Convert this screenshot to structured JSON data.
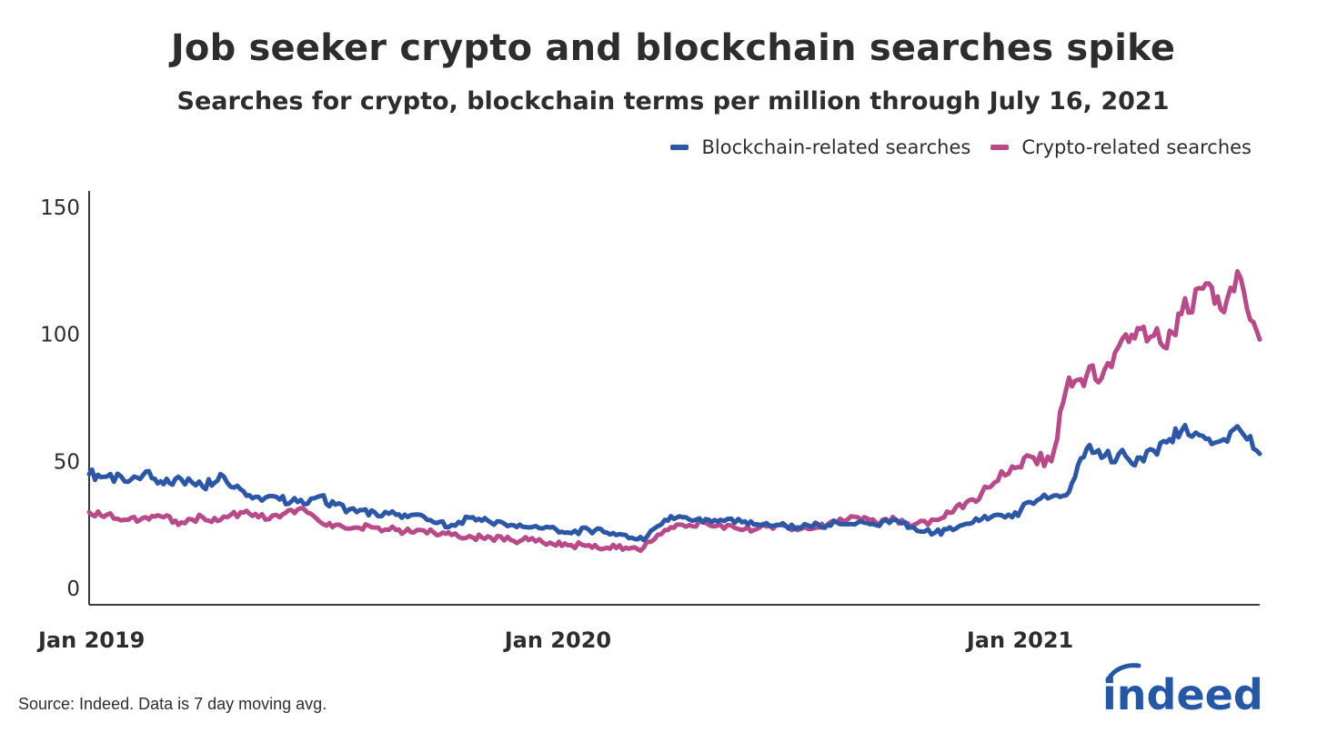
{
  "chart_data": {
    "type": "line",
    "title": "Job seeker crypto and blockchain searches spike",
    "subtitle": "Searches for crypto, blockchain terms per million through July 16, 2021",
    "xlabel": "",
    "ylabel": "",
    "ylim": [
      0,
      150
    ],
    "y_ticks": [
      "0",
      "50",
      "100",
      "150"
    ],
    "x_ticks": [
      "Jan 2019",
      "Jan 2020",
      "Jan 2021"
    ],
    "xlim": [
      "2019-01-01",
      "2021-07-16"
    ],
    "grid": false,
    "legend_position": "top-right",
    "colors": {
      "blockchain": "#2b57a6",
      "crypto": "#b84a8a"
    },
    "series": [
      {
        "name": "Blockchain-related searches",
        "color": "#2b57a6",
        "x": [
          "2019-01-01",
          "2019-01-15",
          "2019-02-01",
          "2019-02-15",
          "2019-03-01",
          "2019-03-15",
          "2019-04-01",
          "2019-04-15",
          "2019-05-01",
          "2019-05-15",
          "2019-06-01",
          "2019-06-15",
          "2019-07-01",
          "2019-07-15",
          "2019-08-01",
          "2019-08-15",
          "2019-09-01",
          "2019-09-15",
          "2019-10-01",
          "2019-10-15",
          "2019-11-01",
          "2019-11-15",
          "2019-12-01",
          "2019-12-15",
          "2020-01-01",
          "2020-01-15",
          "2020-02-01",
          "2020-02-15",
          "2020-03-01",
          "2020-03-15",
          "2020-04-01",
          "2020-04-15",
          "2020-05-01",
          "2020-05-15",
          "2020-06-01",
          "2020-06-15",
          "2020-07-01",
          "2020-07-15",
          "2020-08-01",
          "2020-08-15",
          "2020-09-01",
          "2020-09-15",
          "2020-10-01",
          "2020-10-15",
          "2020-11-01",
          "2020-11-15",
          "2020-12-01",
          "2020-12-15",
          "2021-01-01",
          "2021-01-15",
          "2021-02-01",
          "2021-02-15",
          "2021-03-01",
          "2021-03-15",
          "2021-04-01",
          "2021-04-15",
          "2021-05-01",
          "2021-05-15",
          "2021-06-01",
          "2021-06-15",
          "2021-07-01",
          "2021-07-16"
        ],
        "values": [
          45,
          44,
          42,
          46,
          41,
          43,
          40,
          45,
          39,
          36,
          35,
          34,
          36,
          33,
          30,
          30,
          29,
          29,
          26,
          25,
          28,
          26,
          25,
          24,
          24,
          22,
          23,
          22,
          21,
          19,
          27,
          28,
          26,
          27,
          26,
          25,
          25,
          24,
          25,
          26,
          26,
          25,
          27,
          24,
          22,
          23,
          26,
          28,
          28,
          34,
          36,
          38,
          55,
          52,
          52,
          50,
          58,
          62,
          60,
          58,
          62,
          53
        ],
        "ylim": [
          0,
          150
        ]
      },
      {
        "name": "Crypto-related searches",
        "color": "#b84a8a",
        "x": [
          "2019-01-01",
          "2019-01-15",
          "2019-02-01",
          "2019-02-15",
          "2019-03-01",
          "2019-03-15",
          "2019-04-01",
          "2019-04-15",
          "2019-05-01",
          "2019-05-15",
          "2019-06-01",
          "2019-06-15",
          "2019-07-01",
          "2019-07-15",
          "2019-08-01",
          "2019-08-15",
          "2019-09-01",
          "2019-09-15",
          "2019-10-01",
          "2019-10-15",
          "2019-11-01",
          "2019-11-15",
          "2019-12-01",
          "2019-12-15",
          "2020-01-01",
          "2020-01-15",
          "2020-02-01",
          "2020-02-15",
          "2020-03-01",
          "2020-03-15",
          "2020-04-01",
          "2020-04-15",
          "2020-05-01",
          "2020-05-15",
          "2020-06-01",
          "2020-06-15",
          "2020-07-01",
          "2020-07-15",
          "2020-08-01",
          "2020-08-15",
          "2020-09-01",
          "2020-09-15",
          "2020-10-01",
          "2020-10-15",
          "2020-11-01",
          "2020-11-15",
          "2020-12-01",
          "2020-12-15",
          "2021-01-01",
          "2021-01-15",
          "2021-02-01",
          "2021-02-15",
          "2021-03-01",
          "2021-03-15",
          "2021-04-01",
          "2021-04-15",
          "2021-05-01",
          "2021-05-15",
          "2021-06-01",
          "2021-06-15",
          "2021-07-01",
          "2021-07-16"
        ],
        "values": [
          30,
          29,
          27,
          28,
          28,
          26,
          28,
          27,
          30,
          28,
          28,
          31,
          27,
          25,
          24,
          24,
          23,
          22,
          22,
          21,
          20,
          20,
          19,
          19,
          18,
          17,
          17,
          16,
          16,
          16,
          23,
          25,
          26,
          25,
          23,
          24,
          25,
          23,
          24,
          26,
          28,
          26,
          27,
          25,
          27,
          30,
          35,
          40,
          48,
          52,
          50,
          83,
          84,
          86,
          100,
          103,
          95,
          108,
          118,
          110,
          122,
          98
        ],
        "ylim": [
          0,
          150
        ]
      }
    ]
  },
  "source": "Source: Indeed. Data is 7 day moving avg.",
  "logo": "indeed"
}
